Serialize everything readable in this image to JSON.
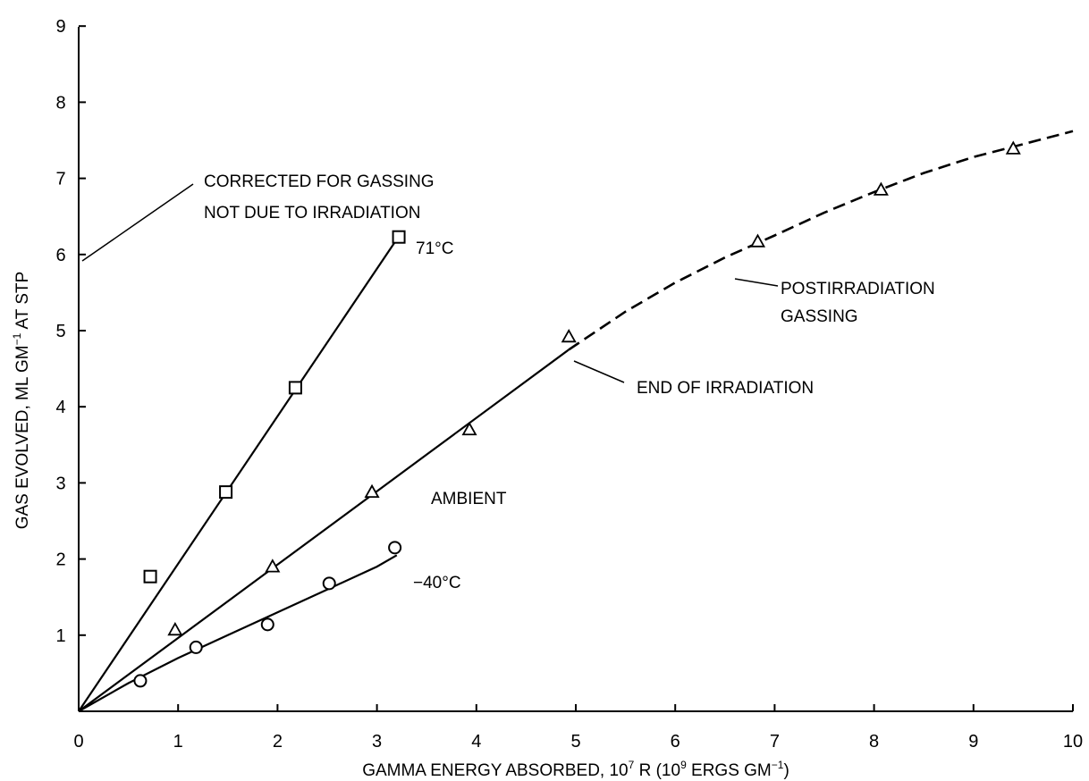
{
  "chart_data": {
    "type": "scatter",
    "xlabel": {
      "pre": "GAMMA ENERGY ABSORBED, 10",
      "sup1": "7",
      "mid": " R (10",
      "sup2": "9",
      "post": " ERGS GM",
      "sup3": "−1",
      "end": ")"
    },
    "ylabel": {
      "pre": "GAS EVOLVED, ML GM",
      "sup": "−1",
      "post": " AT STP"
    },
    "xlim": [
      0,
      10
    ],
    "ylim": [
      0,
      9
    ],
    "x_ticks": [
      "0",
      "1",
      "2",
      "3",
      "4",
      "5",
      "6",
      "7",
      "8",
      "9",
      "10"
    ],
    "y_ticks": [
      "1",
      "2",
      "3",
      "4",
      "5",
      "6",
      "7",
      "8",
      "9"
    ],
    "grid": false,
    "series": [
      {
        "name": "71°C",
        "marker": "square",
        "points": [
          [
            0.72,
            1.77
          ],
          [
            1.48,
            2.88
          ],
          [
            2.18,
            4.25
          ],
          [
            3.22,
            6.23
          ]
        ],
        "fit_line": [
          [
            0,
            0
          ],
          [
            3.2,
            6.2
          ]
        ]
      },
      {
        "name": "AMBIENT",
        "marker": "triangle",
        "points": [
          [
            0.97,
            1.07
          ],
          [
            1.95,
            1.9
          ],
          [
            2.95,
            2.88
          ],
          [
            3.93,
            3.7
          ],
          [
            4.93,
            4.92
          ],
          [
            6.83,
            6.17
          ],
          [
            8.07,
            6.85
          ],
          [
            9.4,
            7.39
          ]
        ],
        "fit_line": [
          [
            0,
            0
          ],
          [
            4.93,
            4.75
          ]
        ],
        "dashed_curve": [
          [
            4.93,
            4.75
          ],
          [
            5.5,
            5.25
          ],
          [
            6.0,
            5.63
          ],
          [
            6.5,
            5.96
          ],
          [
            7.0,
            6.25
          ],
          [
            7.5,
            6.55
          ],
          [
            8.0,
            6.82
          ],
          [
            8.5,
            7.07
          ],
          [
            9.0,
            7.28
          ],
          [
            9.5,
            7.45
          ],
          [
            10.0,
            7.62
          ]
        ]
      },
      {
        "name": "−40°C",
        "marker": "circle",
        "points": [
          [
            0.62,
            0.4
          ],
          [
            1.18,
            0.84
          ],
          [
            1.9,
            1.14
          ],
          [
            2.52,
            1.68
          ],
          [
            3.18,
            2.15
          ]
        ],
        "fit_line": [
          [
            0,
            0
          ],
          [
            0.5,
            0.37
          ],
          [
            1.0,
            0.7
          ],
          [
            1.5,
            1.0
          ],
          [
            2.0,
            1.3
          ],
          [
            2.5,
            1.6
          ],
          [
            3.0,
            1.9
          ],
          [
            3.2,
            2.05
          ]
        ]
      }
    ],
    "annotations": {
      "corrected_line1": "CORRECTED FOR GASSING",
      "corrected_line2": "NOT DUE TO IRRADIATION",
      "label_71": "71°C",
      "label_ambient": "AMBIENT",
      "label_minus40": "−40°C",
      "end_irradiation": "END OF IRRADIATION",
      "post_line1": "POSTIRRADIATION",
      "post_line2": "GASSING"
    }
  }
}
